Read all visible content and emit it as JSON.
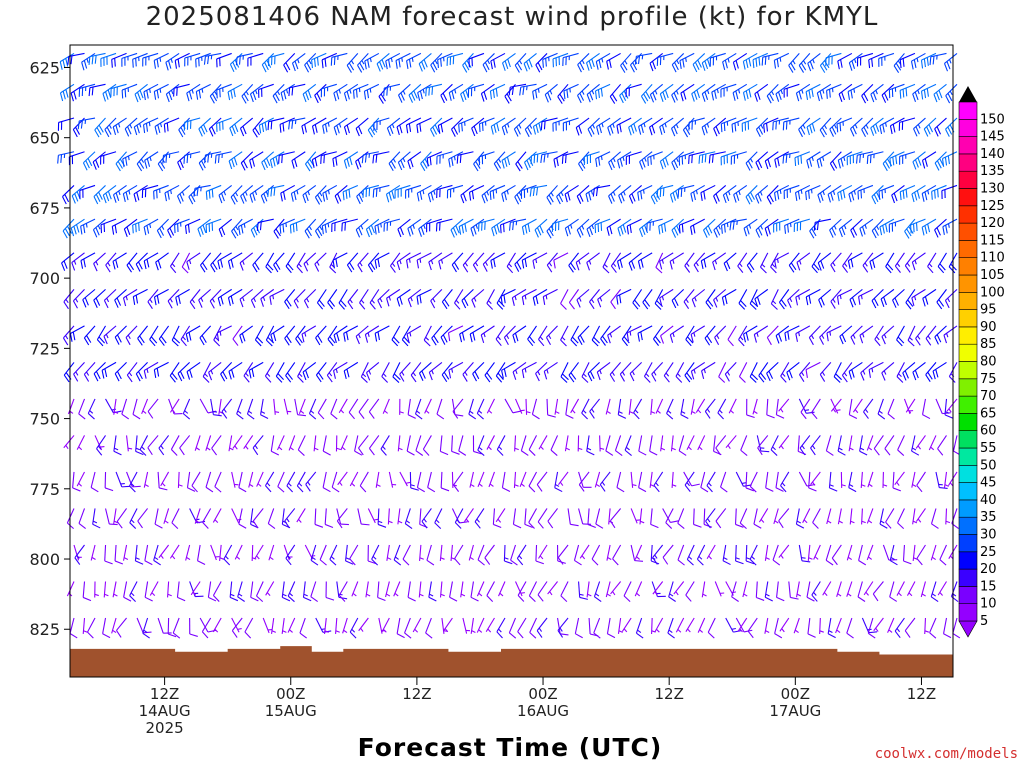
{
  "title": "2025081406 NAM forecast wind profile (kt) for KMYL",
  "xlabel": "Forecast Time (UTC)",
  "credit": "coolwx.com/models",
  "chart_data": {
    "type": "wind-barb-profile",
    "units": "kt",
    "y_axis": {
      "quantity": "pressure (hPa)",
      "ticks": [
        625,
        650,
        675,
        700,
        725,
        750,
        775,
        800,
        825
      ],
      "range": [
        617,
        842
      ],
      "inverted": true
    },
    "x_axis": {
      "range_hours": [
        -9,
        75
      ],
      "ticks": [
        {
          "hour": 0,
          "lines": [
            "12Z",
            "14AUG",
            "2025"
          ]
        },
        {
          "hour": 12,
          "lines": [
            "00Z",
            "15AUG"
          ]
        },
        {
          "hour": 24,
          "lines": [
            "12Z"
          ]
        },
        {
          "hour": 36,
          "lines": [
            "00Z",
            "16AUG"
          ]
        },
        {
          "hour": 48,
          "lines": [
            "12Z"
          ]
        },
        {
          "hour": 60,
          "lines": [
            "00Z",
            "17AUG"
          ]
        },
        {
          "hour": 72,
          "lines": [
            "12Z"
          ]
        }
      ]
    },
    "barb_levels_hpa": [
      821,
      808,
      795,
      782,
      769,
      756,
      743,
      730,
      717,
      704,
      691,
      679,
      667,
      655,
      643,
      631,
      620
    ],
    "time_step_hours": 1,
    "surface_pressure_hpa": [
      {
        "hour": -9,
        "p": 832
      },
      {
        "hour": 0,
        "p": 832
      },
      {
        "hour": 1,
        "p": 833
      },
      {
        "hour": 3,
        "p": 833
      },
      {
        "hour": 6,
        "p": 832
      },
      {
        "hour": 9,
        "p": 832
      },
      {
        "hour": 11,
        "p": 831
      },
      {
        "hour": 14,
        "p": 833
      },
      {
        "hour": 17,
        "p": 832
      },
      {
        "hour": 22,
        "p": 832
      },
      {
        "hour": 27,
        "p": 833
      },
      {
        "hour": 32,
        "p": 832
      },
      {
        "hour": 40,
        "p": 832
      },
      {
        "hour": 52,
        "p": 832
      },
      {
        "hour": 60,
        "p": 832
      },
      {
        "hour": 64,
        "p": 833
      },
      {
        "hour": 68,
        "p": 834
      },
      {
        "hour": 73,
        "p": 834
      },
      {
        "hour": 75,
        "p": 835
      }
    ],
    "wind_regimes": [
      {
        "p_min": 617,
        "p_max": 680,
        "direction_deg": 240,
        "speed_kt_range": [
          20,
          30
        ]
      },
      {
        "p_min": 680,
        "p_max": 740,
        "direction_deg": 225,
        "speed_kt_range": [
          12,
          22
        ]
      },
      {
        "p_min": 740,
        "p_max": 842,
        "direction_deg": 200,
        "speed_kt_range": [
          3,
          15
        ]
      }
    ],
    "colorbar": {
      "labels": [
        "5",
        "10",
        "15",
        "20",
        "25",
        "30",
        "35",
        "40",
        "45",
        "50",
        "55",
        "60",
        "65",
        "70",
        "75",
        "80",
        "85",
        "90",
        "95",
        "100",
        "105",
        "110",
        "115",
        "120",
        "125",
        "130",
        "135",
        "140",
        "145",
        "150"
      ],
      "colors": [
        "#9400ff",
        "#7a00ff",
        "#3a00ff",
        "#0000ff",
        "#0040ff",
        "#0070ff",
        "#009cff",
        "#00c0ff",
        "#00e0e0",
        "#00e8a0",
        "#00e060",
        "#00e000",
        "#40f000",
        "#80f000",
        "#c0ff00",
        "#f0ff00",
        "#ffee00",
        "#ffd000",
        "#ffb000",
        "#ff9400",
        "#ff8000",
        "#ff6a00",
        "#ff5000",
        "#ff3000",
        "#ff1010",
        "#ff0040",
        "#ff0080",
        "#ff00b0",
        "#ff00e0",
        "#ff00ff"
      ]
    },
    "ground_color": "#a0522d",
    "background": "#ffffff"
  }
}
